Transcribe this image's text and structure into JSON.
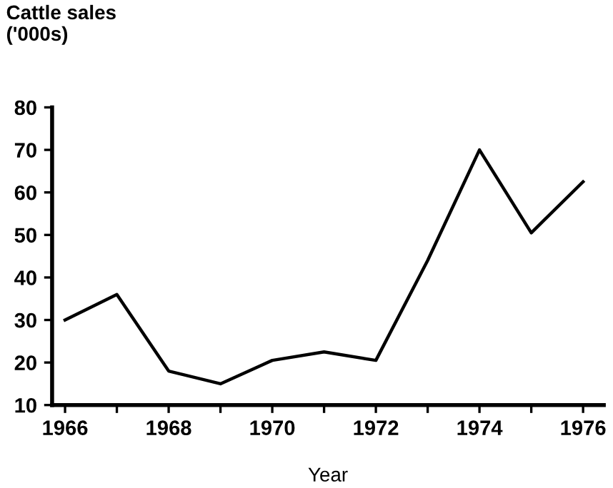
{
  "chart_data": {
    "type": "line",
    "title": "Cattle sales\n('000s)",
    "xlabel": "Year",
    "x": [
      1966,
      1967,
      1968,
      1969,
      1970,
      1971,
      1972,
      1973,
      1974,
      1975,
      1976
    ],
    "series": [
      {
        "color": "#000000",
        "values": [
          30,
          36,
          18,
          15,
          20.5,
          22.5,
          20.5,
          44,
          70,
          50.5,
          62.5
        ]
      }
    ],
    "xlim": [
      1965.75,
      1976.4
    ],
    "ylim": [
      10,
      80
    ],
    "xticks": [
      1966,
      {
        "value": 1967,
        "label": null
      },
      1968,
      {
        "value": 1969,
        "label": null
      },
      1970,
      {
        "value": 1971,
        "label": null
      },
      1972,
      {
        "value": 1973,
        "label": null
      },
      1974,
      {
        "value": 1975,
        "label": null
      },
      1976
    ],
    "yticks": [
      10,
      20,
      30,
      40,
      50,
      60,
      70,
      80
    ],
    "grid": false,
    "marker": "none",
    "line_style": "solid"
  }
}
